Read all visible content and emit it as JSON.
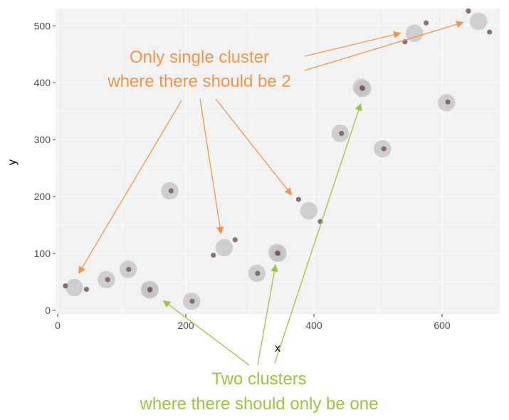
{
  "chart_data": {
    "type": "scatter",
    "xlabel": "x",
    "ylabel": "y",
    "xlim": [
      0,
      690
    ],
    "ylim": [
      0,
      530
    ],
    "xticks": [
      0,
      200,
      400,
      600
    ],
    "yticks": [
      0,
      100,
      200,
      300,
      400,
      500
    ],
    "grid": true,
    "series": [
      {
        "role": "cluster-centers",
        "color": "#c2c2c2",
        "points": [
          {
            "x": 26,
            "y": 40
          },
          {
            "x": 76,
            "y": 54
          },
          {
            "x": 110,
            "y": 72
          },
          {
            "x": 143,
            "y": 37
          },
          {
            "x": 144,
            "y": 36
          },
          {
            "x": 175,
            "y": 210
          },
          {
            "x": 209,
            "y": 16
          },
          {
            "x": 260,
            "y": 110
          },
          {
            "x": 311,
            "y": 65
          },
          {
            "x": 342,
            "y": 102
          },
          {
            "x": 344,
            "y": 100
          },
          {
            "x": 392,
            "y": 175
          },
          {
            "x": 441,
            "y": 311
          },
          {
            "x": 474,
            "y": 392
          },
          {
            "x": 476,
            "y": 390
          },
          {
            "x": 507,
            "y": 284
          },
          {
            "x": 557,
            "y": 487
          },
          {
            "x": 607,
            "y": 365
          },
          {
            "x": 657,
            "y": 508
          }
        ]
      },
      {
        "role": "data-points",
        "color": "#7a5a5e",
        "points": [
          {
            "x": 12,
            "y": 43
          },
          {
            "x": 45,
            "y": 37
          },
          {
            "x": 78,
            "y": 54
          },
          {
            "x": 111,
            "y": 72
          },
          {
            "x": 144,
            "y": 36
          },
          {
            "x": 144,
            "y": 37
          },
          {
            "x": 177,
            "y": 210
          },
          {
            "x": 210,
            "y": 16
          },
          {
            "x": 243,
            "y": 97
          },
          {
            "x": 277,
            "y": 124
          },
          {
            "x": 312,
            "y": 65
          },
          {
            "x": 343,
            "y": 101
          },
          {
            "x": 344,
            "y": 100
          },
          {
            "x": 376,
            "y": 195
          },
          {
            "x": 410,
            "y": 156
          },
          {
            "x": 443,
            "y": 311
          },
          {
            "x": 475,
            "y": 391
          },
          {
            "x": 476,
            "y": 390
          },
          {
            "x": 509,
            "y": 284
          },
          {
            "x": 542,
            "y": 472
          },
          {
            "x": 575,
            "y": 505
          },
          {
            "x": 609,
            "y": 366
          },
          {
            "x": 641,
            "y": 526
          },
          {
            "x": 674,
            "y": 489
          }
        ]
      }
    ],
    "annotations": [
      {
        "lines": [
          "Only single cluster",
          "where there should be 2"
        ],
        "color": "#f0954a",
        "arrow_targets": [
          {
            "x": 33,
            "y": 65
          },
          {
            "x": 255,
            "y": 135
          },
          {
            "x": 365,
            "y": 203
          },
          {
            "x": 535,
            "y": 487
          },
          {
            "x": 633,
            "y": 506
          }
        ]
      },
      {
        "lines": [
          "Two clusters",
          "where there should only be one"
        ],
        "color": "#9dc43e",
        "arrow_targets": [
          {
            "x": 165,
            "y": 17
          },
          {
            "x": 340,
            "y": 80
          },
          {
            "x": 473,
            "y": 363
          }
        ]
      }
    ]
  }
}
